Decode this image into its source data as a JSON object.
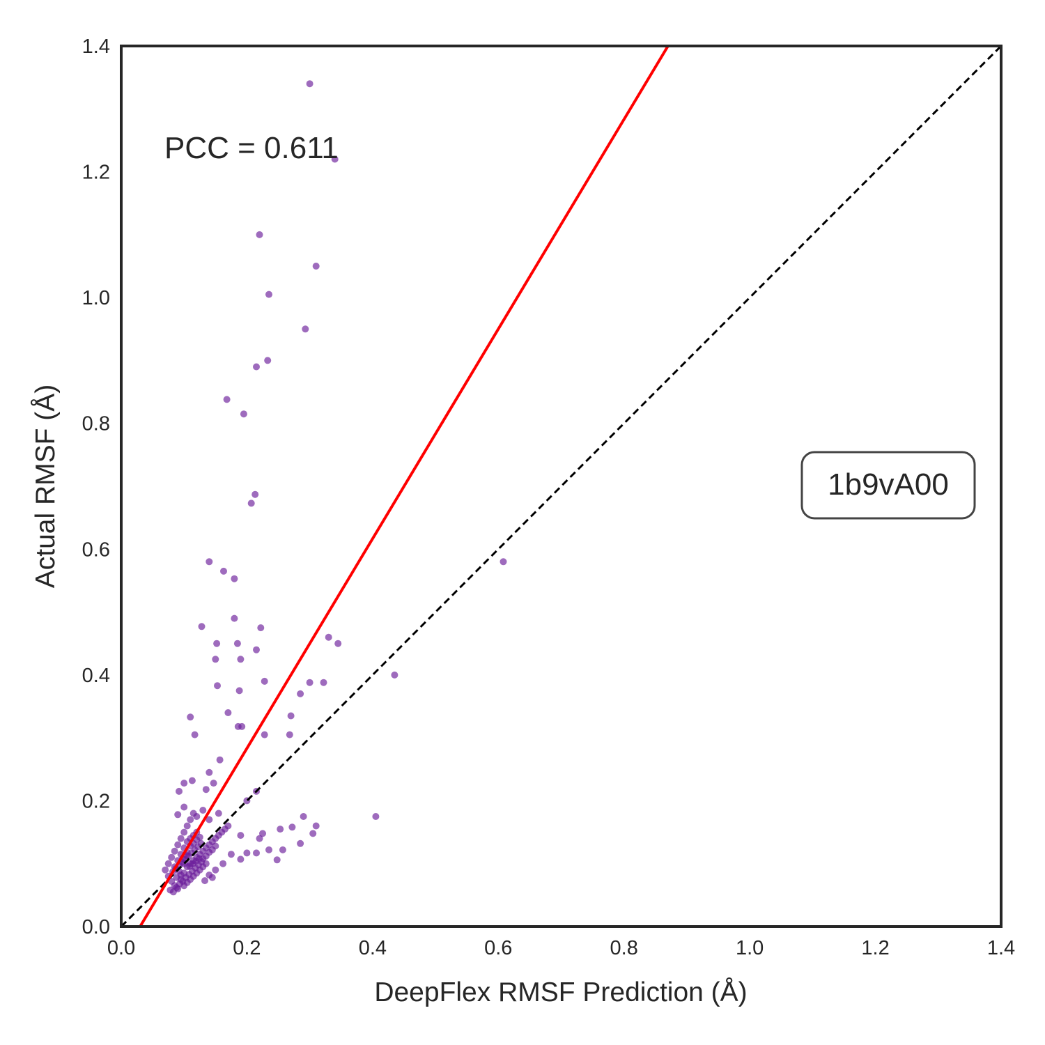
{
  "chart_data": {
    "type": "scatter",
    "xlabel": "DeepFlex RMSF Prediction (Å)",
    "ylabel": "Actual RMSF (Å)",
    "xlim": [
      0.0,
      1.4
    ],
    "ylim": [
      0.0,
      1.4
    ],
    "xticks": [
      "0.0",
      "0.2",
      "0.4",
      "0.6",
      "0.8",
      "1.0",
      "1.2",
      "1.4"
    ],
    "yticks": [
      "0.0",
      "0.2",
      "0.4",
      "0.6",
      "0.8",
      "1.0",
      "1.2",
      "1.4"
    ],
    "grid": false,
    "annotations": {
      "pcc": "PCC = 0.611",
      "domain_id": "1b9vA00"
    },
    "colors": {
      "points": "#6a1b9a",
      "regression": "#ff0000",
      "identity": "#000000",
      "frame": "#262626"
    },
    "regression_line": {
      "points": [
        [
          0.03,
          0.0
        ],
        [
          0.87,
          1.4
        ]
      ]
    },
    "identity_line": {
      "points": [
        [
          0.0,
          0.0
        ],
        [
          1.4,
          1.4
        ]
      ]
    },
    "points": [
      [
        0.3,
        1.34
      ],
      [
        0.34,
        1.22
      ],
      [
        0.22,
        1.1
      ],
      [
        0.31,
        1.05
      ],
      [
        0.235,
        1.005
      ],
      [
        0.293,
        0.95
      ],
      [
        0.233,
        0.9
      ],
      [
        0.215,
        0.89
      ],
      [
        0.168,
        0.838
      ],
      [
        0.195,
        0.815
      ],
      [
        0.213,
        0.687
      ],
      [
        0.207,
        0.673
      ],
      [
        0.608,
        0.58
      ],
      [
        0.14,
        0.58
      ],
      [
        0.163,
        0.565
      ],
      [
        0.18,
        0.553
      ],
      [
        0.18,
        0.49
      ],
      [
        0.128,
        0.477
      ],
      [
        0.222,
        0.475
      ],
      [
        0.33,
        0.46
      ],
      [
        0.345,
        0.45
      ],
      [
        0.152,
        0.45
      ],
      [
        0.185,
        0.45
      ],
      [
        0.215,
        0.44
      ],
      [
        0.15,
        0.425
      ],
      [
        0.19,
        0.425
      ],
      [
        0.435,
        0.4
      ],
      [
        0.228,
        0.39
      ],
      [
        0.3,
        0.388
      ],
      [
        0.322,
        0.388
      ],
      [
        0.153,
        0.383
      ],
      [
        0.188,
        0.375
      ],
      [
        0.285,
        0.37
      ],
      [
        0.17,
        0.34
      ],
      [
        0.27,
        0.335
      ],
      [
        0.11,
        0.333
      ],
      [
        0.186,
        0.318
      ],
      [
        0.192,
        0.318
      ],
      [
        0.228,
        0.305
      ],
      [
        0.268,
        0.305
      ],
      [
        0.117,
        0.305
      ],
      [
        0.157,
        0.265
      ],
      [
        0.14,
        0.245
      ],
      [
        0.1,
        0.228
      ],
      [
        0.113,
        0.232
      ],
      [
        0.147,
        0.228
      ],
      [
        0.092,
        0.215
      ],
      [
        0.135,
        0.218
      ],
      [
        0.215,
        0.215
      ],
      [
        0.2,
        0.2
      ],
      [
        0.405,
        0.175
      ],
      [
        0.29,
        0.175
      ],
      [
        0.31,
        0.16
      ],
      [
        0.253,
        0.155
      ],
      [
        0.272,
        0.158
      ],
      [
        0.225,
        0.148
      ],
      [
        0.305,
        0.148
      ],
      [
        0.22,
        0.14
      ],
      [
        0.19,
        0.145
      ],
      [
        0.285,
        0.132
      ],
      [
        0.235,
        0.122
      ],
      [
        0.215,
        0.117
      ],
      [
        0.2,
        0.117
      ],
      [
        0.257,
        0.122
      ],
      [
        0.248,
        0.106
      ],
      [
        0.19,
        0.107
      ],
      [
        0.162,
        0.1
      ],
      [
        0.175,
        0.115
      ],
      [
        0.07,
        0.09
      ],
      [
        0.075,
        0.08
      ],
      [
        0.08,
        0.072
      ],
      [
        0.085,
        0.065
      ],
      [
        0.09,
        0.06
      ],
      [
        0.095,
        0.075
      ],
      [
        0.1,
        0.085
      ],
      [
        0.105,
        0.095
      ],
      [
        0.11,
        0.1
      ],
      [
        0.115,
        0.105
      ],
      [
        0.12,
        0.11
      ],
      [
        0.125,
        0.115
      ],
      [
        0.13,
        0.12
      ],
      [
        0.135,
        0.125
      ],
      [
        0.14,
        0.13
      ],
      [
        0.145,
        0.135
      ],
      [
        0.15,
        0.14
      ],
      [
        0.155,
        0.145
      ],
      [
        0.16,
        0.15
      ],
      [
        0.165,
        0.155
      ],
      [
        0.17,
        0.16
      ],
      [
        0.085,
        0.095
      ],
      [
        0.09,
        0.105
      ],
      [
        0.095,
        0.115
      ],
      [
        0.1,
        0.125
      ],
      [
        0.105,
        0.135
      ],
      [
        0.11,
        0.14
      ],
      [
        0.115,
        0.145
      ],
      [
        0.12,
        0.15
      ],
      [
        0.075,
        0.1
      ],
      [
        0.08,
        0.11
      ],
      [
        0.085,
        0.12
      ],
      [
        0.09,
        0.13
      ],
      [
        0.095,
        0.14
      ],
      [
        0.1,
        0.15
      ],
      [
        0.105,
        0.16
      ],
      [
        0.11,
        0.17
      ],
      [
        0.115,
        0.18
      ],
      [
        0.09,
        0.178
      ],
      [
        0.1,
        0.19
      ],
      [
        0.12,
        0.175
      ],
      [
        0.13,
        0.185
      ],
      [
        0.155,
        0.18
      ],
      [
        0.14,
        0.17
      ],
      [
        0.1,
        0.065
      ],
      [
        0.105,
        0.07
      ],
      [
        0.11,
        0.075
      ],
      [
        0.115,
        0.08
      ],
      [
        0.12,
        0.085
      ],
      [
        0.125,
        0.09
      ],
      [
        0.13,
        0.095
      ],
      [
        0.135,
        0.1
      ],
      [
        0.14,
        0.082
      ],
      [
        0.145,
        0.078
      ],
      [
        0.15,
        0.09
      ],
      [
        0.133,
        0.073
      ],
      [
        0.078,
        0.058
      ],
      [
        0.083,
        0.055
      ],
      [
        0.088,
        0.062
      ],
      [
        0.093,
        0.068
      ],
      [
        0.098,
        0.072
      ],
      [
        0.103,
        0.078
      ],
      [
        0.108,
        0.083
      ],
      [
        0.113,
        0.088
      ],
      [
        0.118,
        0.093
      ],
      [
        0.123,
        0.098
      ],
      [
        0.128,
        0.103
      ],
      [
        0.082,
        0.087
      ],
      [
        0.087,
        0.092
      ],
      [
        0.092,
        0.097
      ],
      [
        0.097,
        0.102
      ],
      [
        0.102,
        0.107
      ],
      [
        0.107,
        0.112
      ],
      [
        0.112,
        0.117
      ],
      [
        0.117,
        0.122
      ],
      [
        0.122,
        0.127
      ],
      [
        0.127,
        0.132
      ],
      [
        0.095,
        0.082
      ],
      [
        0.1,
        0.1
      ],
      [
        0.105,
        0.118
      ],
      [
        0.11,
        0.128
      ],
      [
        0.115,
        0.132
      ],
      [
        0.12,
        0.138
      ],
      [
        0.125,
        0.142
      ],
      [
        0.13,
        0.108
      ],
      [
        0.135,
        0.112
      ],
      [
        0.14,
        0.118
      ],
      [
        0.145,
        0.122
      ],
      [
        0.15,
        0.128
      ],
      [
        0.098,
        0.108
      ],
      [
        0.104,
        0.113
      ],
      [
        0.109,
        0.096
      ],
      [
        0.114,
        0.1
      ],
      [
        0.119,
        0.104
      ],
      [
        0.124,
        0.108
      ],
      [
        0.092,
        0.088
      ],
      [
        0.088,
        0.078
      ]
    ]
  }
}
